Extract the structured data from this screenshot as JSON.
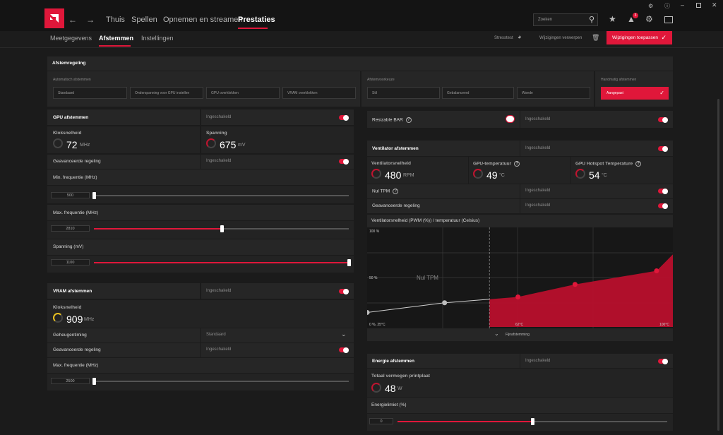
{
  "topnav": {
    "items": [
      "Thuis",
      "Spellen",
      "Opnemen en streamen",
      "Prestaties"
    ],
    "search_placeholder": "Zoeken",
    "notif_count": "3"
  },
  "subnav": {
    "tabs": [
      "Meetgegevens",
      "Afstemmen",
      "Instellingen"
    ],
    "stresstest": "Stresstest",
    "discard": "Wijzigingen verwerpen",
    "apply": "Wijzigingen toepassen"
  },
  "tuning": {
    "title": "Afstemregeling",
    "auto_label": "Automatisch afstemmen",
    "auto_options": [
      "Standaard",
      "Onderspanning voor GPU instellen",
      "GPU overklokken",
      "VRAM overklokken"
    ],
    "preset_label": "Afstemvoorkeuze",
    "preset_options": [
      "Stil",
      "Gebalanceerd",
      "Woede"
    ],
    "manual_label": "Handmatig afstemmen",
    "manual_value": "Aangepast"
  },
  "gpu": {
    "title": "GPU afstemmen",
    "state": "Ingeschakeld",
    "clock_label": "Kloksnelheid",
    "clock_value": "72",
    "clock_unit": "MHz",
    "voltage_label": "Spanning",
    "voltage_value": "675",
    "voltage_unit": "mV",
    "advanced_label": "Geavanceerde regeling",
    "advanced_state": "Ingeschakeld",
    "min_freq_label": "Min. frequentie (MHz)",
    "min_freq_value": "500",
    "max_freq_label": "Max. frequentie (MHz)",
    "max_freq_value": "2810",
    "volt_label": "Spanning (mV)",
    "volt_value": "1100",
    "min_freq_level": 0.0,
    "max_freq_level": 0.5,
    "volt_level": 1.0
  },
  "vram": {
    "title": "VRAM afstemmen",
    "state": "Ingeschakeld",
    "clock_label": "Kloksnelheid",
    "clock_value": "909",
    "clock_unit": "MHz",
    "timing_label": "Geheugentiming",
    "timing_value": "Standaard",
    "advanced_label": "Geavanceerde regeling",
    "advanced_state": "Ingeschakeld",
    "max_freq_label": "Max. frequentie (MHz)",
    "max_freq_value": "2500",
    "max_freq_level": 0.0
  },
  "rbar": {
    "label": "Resizable BAR",
    "state": "Ingeschakeld"
  },
  "fan": {
    "title": "Ventilator afstemmen",
    "state": "Ingeschakeld",
    "speed_label": "Ventilatorsnelheid",
    "speed_value": "480",
    "speed_unit": "RPM",
    "gpu_temp_label": "GPU-temperatuur",
    "gpu_temp_value": "49",
    "temp_unit": "°C",
    "hotspot_label": "GPU Hotspot Temperature",
    "hotspot_value": "54",
    "zero_rpm_label": "Nul TPM",
    "zero_rpm_state": "Ingeschakeld",
    "advanced_label": "Geavanceerde regeling",
    "advanced_state": "Ingeschakeld",
    "curve_title": "Ventilatorsnelheid (PWM (%)) / temperatuur (Celsius)",
    "y_top": "100 %",
    "y_mid": "50 %",
    "origin": "0 %, 25°C",
    "x_mid": "62°C",
    "x_max": "100°C",
    "zone_label": "Nul TPM",
    "fine_tune": "Fijnafstemming"
  },
  "power": {
    "title": "Energie afstemmen",
    "state": "Ingeschakeld",
    "board_label": "Totaal vermogen printplaat",
    "board_value": "48",
    "board_unit": "W",
    "limit_label": "Energielimiet (%)",
    "limit_value": "0",
    "limit_level": 0.5
  },
  "colors": {
    "accent": "#e0173a",
    "background": "#1b1b1b",
    "panel": "#262626"
  },
  "chart_data": {
    "type": "line",
    "title": "Ventilatorsnelheid (PWM (%)) / temperatuur (Celsius)",
    "xlabel": "",
    "ylabel": "",
    "series": [
      {
        "values_x": [
          25,
          44,
          62,
          76,
          96,
          100
        ],
        "values_y": [
          15,
          25,
          31,
          44,
          58,
          75
        ]
      }
    ]
  }
}
